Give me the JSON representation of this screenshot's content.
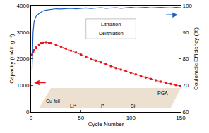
{
  "chart_data": {
    "type": "line",
    "x_label": "Cycle Number",
    "y_label": "Capacity (mA h g⁻¹)",
    "y2_label": "Coulombic Efficiency (%)",
    "xlim": [
      0,
      150
    ],
    "xticks": [
      0,
      50,
      100,
      150
    ],
    "ylim": [
      0,
      4000
    ],
    "yticks": [
      0,
      1000,
      2000,
      3000,
      4000
    ],
    "y2lim": [
      60,
      100
    ],
    "y2ticks": [
      60,
      70,
      80,
      90,
      100
    ],
    "grid": false,
    "series": [
      {
        "color": "#e8141c",
        "marker": "circle",
        "type": "scatter",
        "x": [
          1,
          2,
          3,
          5,
          8,
          10,
          12,
          15,
          18,
          20,
          25,
          30,
          35,
          40,
          45,
          50,
          55,
          60,
          65,
          70,
          75,
          80,
          85,
          90,
          95,
          100,
          105,
          110,
          115,
          120,
          125,
          130,
          135,
          140,
          145,
          150
        ],
        "values": [
          2150,
          2250,
          2330,
          2420,
          2530,
          2580,
          2610,
          2620,
          2600,
          2580,
          2520,
          2450,
          2380,
          2300,
          2230,
          2150,
          2080,
          2000,
          1930,
          1860,
          1790,
          1720,
          1650,
          1590,
          1530,
          1470,
          1410,
          1350,
          1290,
          1240,
          1190,
          1140,
          1090,
          1050,
          1010,
          970
        ]
      },
      {
        "color": "#1f5fbf",
        "marker": "line",
        "type": "line",
        "axis": "y2",
        "x": [
          1,
          2,
          3,
          5,
          8,
          10,
          12,
          15,
          18,
          20,
          25,
          30,
          35,
          40,
          45,
          50,
          55,
          60,
          65,
          70,
          75,
          80,
          85,
          90,
          95,
          100,
          105,
          110,
          115,
          120,
          125,
          130,
          135,
          140,
          145,
          150
        ],
        "values": [
          76,
          90,
          94,
          96,
          97,
          97.5,
          98,
          98.3,
          98.5,
          98.6,
          98.8,
          98.7,
          98.9,
          99,
          98.8,
          99,
          99.1,
          98.9,
          99,
          99.2,
          99,
          99.1,
          99.2,
          99,
          99.1,
          99.3,
          99.1,
          99.2,
          99.3,
          99.1,
          99.2,
          99.3,
          99.2,
          99.1,
          99.3,
          99.2
        ]
      }
    ],
    "annotations": [
      "Lithiation",
      "Delithiation",
      "Cu foil",
      "PGA",
      "Li⁺",
      "P",
      "Si"
    ]
  }
}
